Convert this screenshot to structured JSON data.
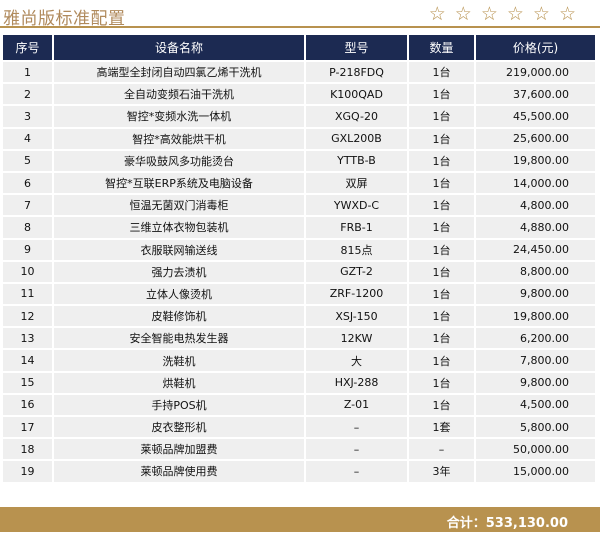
{
  "title": "雅尚版标准配置",
  "stars": [
    "☆",
    "☆",
    "☆",
    "☆",
    "☆",
    "☆"
  ],
  "headers": [
    "序号",
    "设备名称",
    "型号",
    "数量",
    "价格(元)"
  ],
  "rows": [
    {
      "no": "1",
      "name": "高端型全封闭自动四氯乙烯干洗机",
      "model": "P-218FDQ",
      "qty": "1台",
      "price": "219,000.00"
    },
    {
      "no": "2",
      "name": "全自动变频石油干洗机",
      "model": "K100QAD",
      "qty": "1台",
      "price": "37,600.00"
    },
    {
      "no": "3",
      "name": "智控*变频水洗一体机",
      "model": "XGQ-20",
      "qty": "1台",
      "price": "45,500.00"
    },
    {
      "no": "4",
      "name": "智控*高效能烘干机",
      "model": "GXL200B",
      "qty": "1台",
      "price": "25,600.00"
    },
    {
      "no": "5",
      "name": "豪华吸鼓风多功能烫台",
      "model": "YTTB-B",
      "qty": "1台",
      "price": "19,800.00"
    },
    {
      "no": "6",
      "name": "智控*互联ERP系统及电脑设备",
      "model": "双屏",
      "qty": "1台",
      "price": "14,000.00"
    },
    {
      "no": "7",
      "name": "恒温无菌双门消毒柜",
      "model": "YWXD-C",
      "qty": "1台",
      "price": "4,800.00"
    },
    {
      "no": "8",
      "name": "三维立体衣物包装机",
      "model": "FRB-1",
      "qty": "1台",
      "price": "4,880.00"
    },
    {
      "no": "9",
      "name": "衣服联网输送线",
      "model": "815点",
      "qty": "1台",
      "price": "24,450.00"
    },
    {
      "no": "10",
      "name": "强力去渍机",
      "model": "GZT-2",
      "qty": "1台",
      "price": "8,800.00"
    },
    {
      "no": "11",
      "name": "立体人像烫机",
      "model": "ZRF-1200",
      "qty": "1台",
      "price": "9,800.00"
    },
    {
      "no": "12",
      "name": "皮鞋修饰机",
      "model": "XSJ-150",
      "qty": "1台",
      "price": "19,800.00"
    },
    {
      "no": "13",
      "name": "安全智能电热发生器",
      "model": "12KW",
      "qty": "1台",
      "price": "6,200.00"
    },
    {
      "no": "14",
      "name": "洗鞋机",
      "model": "大",
      "qty": "1台",
      "price": "7,800.00"
    },
    {
      "no": "15",
      "name": "烘鞋机",
      "model": "HXJ-288",
      "qty": "1台",
      "price": "9,800.00"
    },
    {
      "no": "16",
      "name": "手持POS机",
      "model": "Z-01",
      "qty": "1台",
      "price": "4,500.00"
    },
    {
      "no": "17",
      "name": "皮衣整形机",
      "model": "–",
      "qty": "1套",
      "price": "5,800.00"
    },
    {
      "no": "18",
      "name": "莱顿品牌加盟费",
      "model": "–",
      "qty": "–",
      "price": "50,000.00"
    },
    {
      "no": "19",
      "name": "莱顿品牌使用费",
      "model": "–",
      "qty": "3年",
      "price": "15,000.00"
    }
  ],
  "total": {
    "label": "合计：",
    "value": "533,130.00"
  },
  "colors": {
    "header_bg": "#1c2a52",
    "gold": "#b8924f",
    "row_bg": "#efefef"
  }
}
